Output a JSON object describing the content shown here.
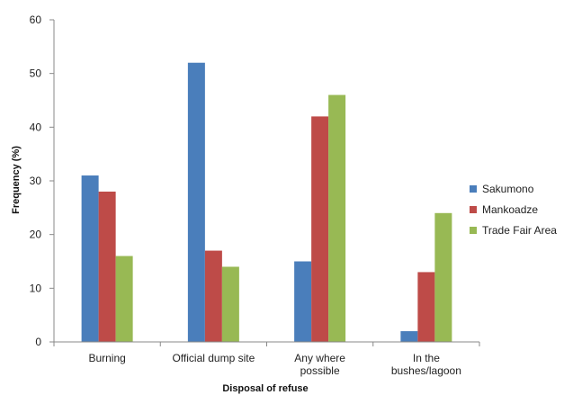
{
  "chart_data": {
    "type": "bar",
    "xlabel": "Disposal of refuse",
    "ylabel": "Frequency (%)",
    "ylim": [
      0,
      60
    ],
    "yticks": [
      0,
      10,
      20,
      30,
      40,
      50,
      60
    ],
    "grid": false,
    "legend_position": "right",
    "categories": [
      [
        "Burning"
      ],
      [
        "Official dump site"
      ],
      [
        "Any where",
        "possible"
      ],
      [
        "In the",
        "bushes/lagoon"
      ]
    ],
    "series": [
      {
        "name": "Sakumono",
        "color": "#4a7ebb",
        "values": [
          31,
          52,
          15,
          2
        ]
      },
      {
        "name": "Mankoadze",
        "color": "#be4b48",
        "values": [
          28,
          17,
          42,
          13
        ]
      },
      {
        "name": "Trade Fair Area",
        "color": "#98b954",
        "values": [
          16,
          14,
          46,
          24
        ]
      }
    ]
  }
}
